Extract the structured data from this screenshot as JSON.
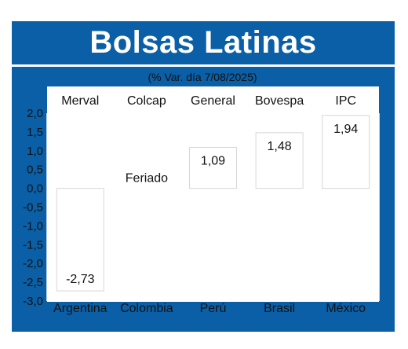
{
  "header": {
    "title": "Bolsas Latinas",
    "subtitle": "(% Var. día 7/08/2025)"
  },
  "chart_data": {
    "type": "bar",
    "title": "Bolsas Latinas",
    "subtitle": "(% Var. día 7/08/2025)",
    "categories": [
      "Argentina",
      "Colombia",
      "Perú",
      "Brasil",
      "México"
    ],
    "index_names": [
      "Merval",
      "Colcap",
      "General",
      "Bovespa",
      "IPC"
    ],
    "values": [
      -2.73,
      null,
      1.09,
      1.48,
      1.94
    ],
    "value_labels": [
      "-2,73",
      "Feriado",
      "1,09",
      "1,48",
      "1,94"
    ],
    "ylim": [
      -3.0,
      2.0
    ],
    "yticks": [
      "2,0",
      "1,5",
      "1,0",
      "0,5",
      "0,0",
      "-0,5",
      "-1,0",
      "-1,5",
      "-2,0",
      "-2,5",
      "-3,0"
    ],
    "grid": true,
    "colors": {
      "panel": "#0a5fa6",
      "bar": "#ffffff",
      "grid": "#ffffff",
      "text": "#111111"
    }
  }
}
